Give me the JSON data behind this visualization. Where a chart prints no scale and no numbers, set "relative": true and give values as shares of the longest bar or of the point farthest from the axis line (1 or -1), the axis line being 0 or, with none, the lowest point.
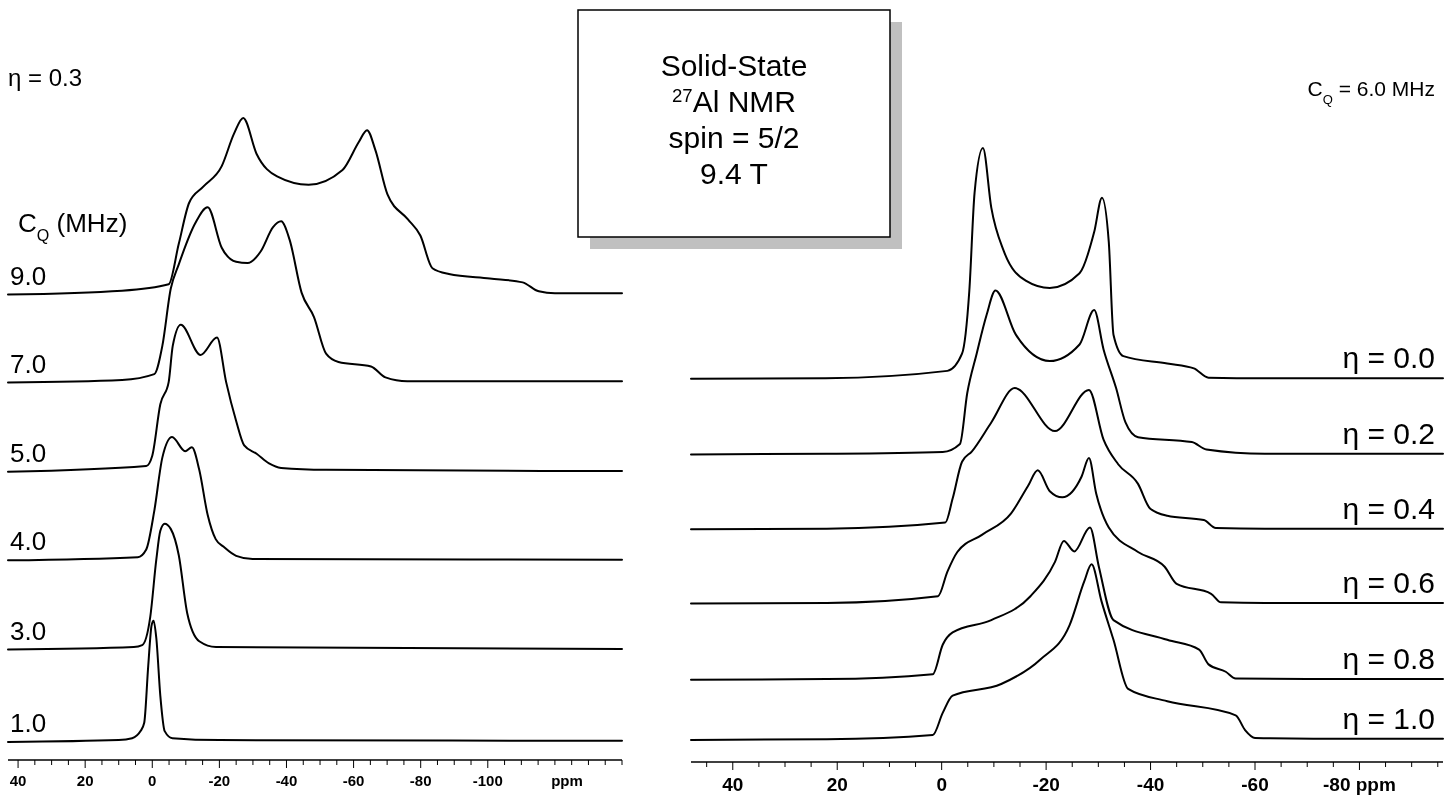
{
  "chart_data": [
    {
      "type": "line",
      "relative": true,
      "subtitle": "η = 0.3",
      "legend_title": "C$_{Q}$ (MHz)",
      "xlabel": "ppm",
      "annotations": [
        "Solid-State",
        "$^{27}$Al NMR",
        "spin = 5/2",
        "9.4 T"
      ],
      "xlim": [
        43,
        -140
      ],
      "xticks": [
        40,
        {
          "value": 35,
          "label": null
        },
        {
          "value": 30,
          "label": null
        },
        {
          "value": 25,
          "label": null
        },
        20,
        {
          "value": 15,
          "label": null
        },
        {
          "value": 10,
          "label": null
        },
        {
          "value": 5,
          "label": null
        },
        0,
        {
          "value": -5,
          "label": null
        },
        {
          "value": -10,
          "label": null
        },
        {
          "value": -15,
          "label": null
        },
        -20,
        {
          "value": -25,
          "label": null
        },
        {
          "value": -30,
          "label": null
        },
        {
          "value": -35,
          "label": null
        },
        -40,
        {
          "value": -45,
          "label": null
        },
        {
          "value": -50,
          "label": null
        },
        {
          "value": -55,
          "label": null
        },
        -60,
        {
          "value": -65,
          "label": null
        },
        {
          "value": -70,
          "label": null
        },
        {
          "value": -75,
          "label": null
        },
        -80,
        {
          "value": -85,
          "label": null
        },
        {
          "value": -90,
          "label": null
        },
        {
          "value": -95,
          "label": null
        },
        -100,
        {
          "value": -105,
          "label": null
        },
        {
          "value": -110,
          "label": null
        },
        {
          "value": -115,
          "label": null
        },
        {
          "value": -120,
          "label": null
        },
        {
          "value": -125,
          "label": null
        },
        {
          "value": -130,
          "label": null
        },
        {
          "value": -135,
          "label": null
        },
        {
          "value": -140,
          "label": null
        }
      ],
      "series": [
        {
          "name": "9.0",
          "color": "#000000",
          "x": [
            43,
            9,
            -4.9,
            -7.9,
            -11,
            -15.2,
            -20.7,
            -24.4,
            -27.1,
            -31.1,
            -37.2,
            -46.6,
            -56.7,
            -61.6,
            -64,
            -66.5,
            -70.1,
            -76.2,
            -79.9,
            -83.5,
            -88.4,
            -100.6,
            -110.4,
            -115.2,
            -120,
            -140
          ],
          "values": [
            0.725,
            0.731,
            0.741,
            0.804,
            0.868,
            0.893,
            0.925,
            0.976,
            1,
            0.944,
            0.909,
            0.896,
            0.919,
            0.963,
            0.981,
            0.95,
            0.881,
            0.842,
            0.817,
            0.766,
            0.757,
            0.75,
            0.744,
            0.73,
            0.727,
            0.727
          ]
        },
        {
          "name": "7.0",
          "color": "#000000",
          "x": [
            43,
            9,
            -0.6,
            -3,
            -5.5,
            -7.9,
            -12.8,
            -16.5,
            -20.7,
            -25,
            -28.4,
            -32.3,
            -36,
            -38.4,
            -40.9,
            -44.5,
            -48.2,
            -51.8,
            -55.5,
            -65.2,
            -69.5,
            -76,
            -140
          ],
          "values": [
            0.588,
            0.592,
            0.601,
            0.645,
            0.734,
            0.772,
            0.836,
            0.861,
            0.798,
            0.776,
            0.774,
            0.792,
            0.83,
            0.839,
            0.811,
            0.728,
            0.69,
            0.633,
            0.62,
            0.613,
            0.596,
            0.59,
            0.59
          ]
        },
        {
          "name": "5.0",
          "color": "#000000",
          "x": [
            43,
            1.8,
            0,
            -2.4,
            -4.9,
            -6.1,
            -8.5,
            -14.4,
            -19.3,
            -22,
            -25,
            -27.4,
            -31.1,
            -34.8,
            -38.4,
            -51.8,
            -140
          ],
          "values": [
            0.449,
            0.458,
            0.474,
            0.554,
            0.589,
            0.645,
            0.678,
            0.631,
            0.658,
            0.589,
            0.528,
            0.49,
            0.477,
            0.462,
            0.455,
            0.452,
            0.45
          ]
        },
        {
          "name": "4.0",
          "color": "#000000",
          "x": [
            43,
            4.3,
            1.8,
            -0.6,
            -3,
            -5.9,
            -9.8,
            -11.8,
            -14,
            -16.5,
            -18.9,
            -21.3,
            -25,
            -29.9,
            -140
          ],
          "values": [
            0.311,
            0.316,
            0.328,
            0.388,
            0.471,
            0.503,
            0.481,
            0.487,
            0.452,
            0.382,
            0.344,
            0.332,
            0.318,
            0.313,
            0.312
          ]
        },
        {
          "name": "3.0",
          "color": "#000000",
          "x": [
            43,
            5.5,
            3,
            0.6,
            -1.2,
            -2.4,
            -3.7,
            -5.5,
            -7.9,
            -10.4,
            -14,
            -19,
            -140
          ],
          "values": [
            0.172,
            0.176,
            0.179,
            0.223,
            0.312,
            0.357,
            0.368,
            0.36,
            0.319,
            0.229,
            0.185,
            0.176,
            0.173
          ]
        },
        {
          "name": "1.0",
          "color": "#000000",
          "x": [
            43,
            10,
            6,
            3.5,
            2.4,
            1.2,
            0.2,
            -0.4,
            -1.2,
            -2.4,
            -3.7,
            -6,
            -20,
            -140
          ],
          "values": [
            0.028,
            0.031,
            0.034,
            0.045,
            0.058,
            0.147,
            0.21,
            0.217,
            0.19,
            0.1,
            0.045,
            0.034,
            0.031,
            0.03
          ]
        }
      ]
    },
    {
      "type": "line",
      "relative": true,
      "subtitle": "C$_{Q}$ = 6.0 MHz",
      "xlim": [
        48,
        -96
      ],
      "xticks": [
        {
          "value": 45,
          "label": null
        },
        40,
        {
          "value": 35,
          "label": null
        },
        {
          "value": 30,
          "label": null
        },
        {
          "value": 25,
          "label": null
        },
        20,
        {
          "value": 15,
          "label": null
        },
        {
          "value": 10,
          "label": null
        },
        {
          "value": 5,
          "label": null
        },
        0,
        {
          "value": -5,
          "label": null
        },
        {
          "value": -10,
          "label": null
        },
        {
          "value": -15,
          "label": null
        },
        -20,
        {
          "value": -25,
          "label": null
        },
        {
          "value": -30,
          "label": null
        },
        {
          "value": -35,
          "label": null
        },
        -40,
        {
          "value": -45,
          "label": null
        },
        {
          "value": -50,
          "label": null
        },
        {
          "value": -55,
          "label": null
        },
        -60,
        {
          "value": -65,
          "label": null
        },
        {
          "value": -70,
          "label": null
        },
        {
          "value": -75,
          "label": null
        },
        {
          "value": -80,
          "label": "-80 ppm"
        },
        {
          "value": -85,
          "label": null
        },
        {
          "value": -90,
          "label": null
        },
        {
          "value": -95,
          "label": null
        }
      ],
      "series": [
        {
          "name": "η = 0.0",
          "color": "#000000",
          "x": [
            48,
            22.2,
            -1.1,
            -3.9,
            -5.3,
            -6.3,
            -7.9,
            -9.5,
            -11.9,
            -16.1,
            -20.7,
            -26.4,
            -29.2,
            -30.7,
            -32,
            -32.9,
            -34.8,
            -43.2,
            -48.3,
            -51.1,
            -61.9,
            -96
          ],
          "values": [
            0.624,
            0.625,
            0.637,
            0.665,
            0.768,
            0.927,
            1,
            0.903,
            0.832,
            0.784,
            0.772,
            0.796,
            0.863,
            0.919,
            0.847,
            0.696,
            0.661,
            0.649,
            0.641,
            0.626,
            0.625,
            0.625
          ]
        },
        {
          "name": "η = 0.2",
          "color": "#000000",
          "x": [
            48,
            22,
            -0.2,
            -3.5,
            -4.9,
            -6.7,
            -8.6,
            -10.3,
            -14.2,
            -20.7,
            -26.4,
            -29.2,
            -31,
            -33.4,
            -35.2,
            -37.6,
            -47.9,
            -50.7,
            -61.9,
            -96
          ],
          "values": [
            0.501,
            0.502,
            0.505,
            0.518,
            0.601,
            0.665,
            0.728,
            0.768,
            0.696,
            0.653,
            0.68,
            0.736,
            0.672,
            0.609,
            0.553,
            0.529,
            0.521,
            0.509,
            0.502,
            0.502
          ]
        },
        {
          "name": "η = 0.4",
          "color": "#000000",
          "x": [
            48,
            22,
            -0.7,
            -2.1,
            -3.9,
            -5.8,
            -9.5,
            -14,
            -21.7,
            -28.2,
            -31,
            -33.8,
            -37.6,
            -39.9,
            -43.2,
            -50.2,
            -52.5,
            -61.9,
            -96
          ],
          "values": [
            0.379,
            0.38,
            0.39,
            0.429,
            0.489,
            0.506,
            0.553,
            0.609,
            0.539,
            0.606,
            0.525,
            0.485,
            0.453,
            0.413,
            0.401,
            0.394,
            0.381,
            0.38,
            0.38
          ]
        },
        {
          "name": "η = 0.6",
          "color": "#000000",
          "x": [
            48,
            22,
            0.7,
            -1.1,
            -3,
            -7.7,
            -13.3,
            -16.5,
            -18.4,
            -20.7,
            -23.1,
            -26.8,
            -28.2,
            -29.6,
            -32,
            -37.6,
            -42.7,
            -45,
            -51.6,
            -53.5,
            -61.9,
            -96
          ],
          "values": [
            0.258,
            0.259,
            0.27,
            0.31,
            0.342,
            0.37,
            0.405,
            0.449,
            0.475,
            0.441,
            0.431,
            0.465,
            0.495,
            0.437,
            0.382,
            0.342,
            0.318,
            0.29,
            0.274,
            0.26,
            0.259,
            0.259
          ]
        },
        {
          "name": "η = 0.8",
          "color": "#000000",
          "x": [
            48,
            22,
            1.7,
            -0.2,
            -2.1,
            -9.5,
            -17,
            -21.7,
            -23.4,
            -25.4,
            -28.4,
            -30.1,
            -32.9,
            -43.2,
            -49.3,
            -51.1,
            -54.4,
            -56.3,
            -70,
            -96
          ],
          "values": [
            0.134,
            0.135,
            0.143,
            0.191,
            0.211,
            0.231,
            0.27,
            0.326,
            0.36,
            0.343,
            0.382,
            0.318,
            0.231,
            0.199,
            0.183,
            0.159,
            0.147,
            0.136,
            0.135,
            0.135
          ]
        },
        {
          "name": "η = 1.0",
          "color": "#000000",
          "x": [
            48,
            22,
            1.7,
            -0.2,
            -2.1,
            -11.4,
            -18.9,
            -24.5,
            -27.3,
            -28.7,
            -30.6,
            -32.9,
            -35.7,
            -43.2,
            -56.3,
            -58.1,
            -60,
            -71.2,
            -96
          ],
          "values": [
            0.036,
            0.037,
            0.044,
            0.08,
            0.108,
            0.127,
            0.167,
            0.223,
            0.294,
            0.322,
            0.262,
            0.199,
            0.119,
            0.099,
            0.076,
            0.052,
            0.039,
            0.038,
            0.038
          ]
        }
      ]
    }
  ]
}
